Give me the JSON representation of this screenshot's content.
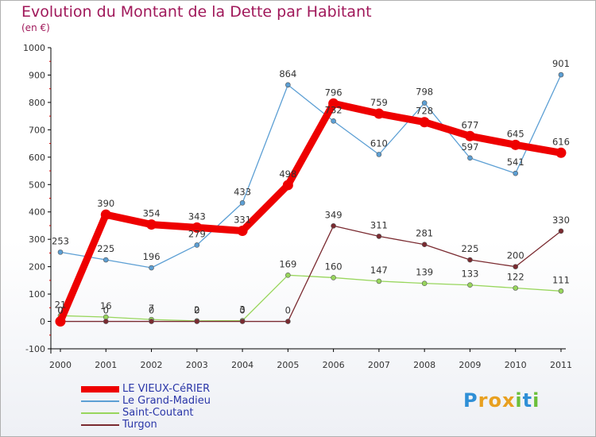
{
  "chart_data": {
    "type": "line",
    "title": "Evolution du Montant de la Dette par Habitant",
    "subtitle": "(en €)",
    "categories": [
      "2000",
      "2001",
      "2002",
      "2003",
      "2004",
      "2005",
      "2006",
      "2007",
      "2008",
      "2009",
      "2010",
      "2011"
    ],
    "yticks": [
      "-100",
      "0",
      "100",
      "200",
      "300",
      "400",
      "500",
      "600",
      "700",
      "800",
      "900",
      "1000"
    ],
    "ylim": [
      -100,
      1000
    ],
    "grid": false,
    "legend_position": "bottom-left",
    "series": [
      {
        "name": "LE VIEUX-CéRIER",
        "color": "#ee0000",
        "values": [
          0,
          390,
          354,
          343,
          331,
          498,
          796,
          759,
          728,
          677,
          645,
          616
        ],
        "labels": [
          "0",
          "390",
          "354",
          "343",
          "331",
          "498",
          "796",
          "759",
          "728",
          "677",
          "645",
          "616"
        ]
      },
      {
        "name": "Le Grand-Madieu",
        "color": "#5c9fd4",
        "values": [
          253,
          225,
          196,
          279,
          433,
          864,
          732,
          610,
          798,
          597,
          541,
          901
        ],
        "labels": [
          "253",
          "225",
          "196",
          "279",
          "433",
          "864",
          "732",
          "610",
          "798",
          "597",
          "541",
          "901"
        ]
      },
      {
        "name": "Saint-Coutant",
        "color": "#98d65c",
        "values": [
          21,
          16,
          7,
          2,
          3,
          169,
          160,
          147,
          139,
          133,
          122,
          111
        ],
        "labels": [
          "21",
          "16",
          "7",
          "2",
          "3",
          "169",
          "160",
          "147",
          "139",
          "133",
          "122",
          "111"
        ]
      },
      {
        "name": "Turgon",
        "color": "#7a2a30",
        "values": [
          0,
          0,
          0,
          0,
          0,
          0,
          349,
          311,
          281,
          225,
          200,
          330
        ],
        "labels": [
          "0",
          "0",
          "0",
          "0",
          "0",
          "0",
          "349",
          "311",
          "281",
          "225",
          "200",
          "330"
        ]
      }
    ]
  },
  "logo": {
    "letters": [
      "P",
      "r",
      "o",
      "x",
      "i",
      "t",
      "i"
    ],
    "colors": [
      "#2f8fd6",
      "#e8a020",
      "#e8a020",
      "#e8a020",
      "#6bbf3a",
      "#2f8fd6",
      "#6bbf3a"
    ]
  }
}
